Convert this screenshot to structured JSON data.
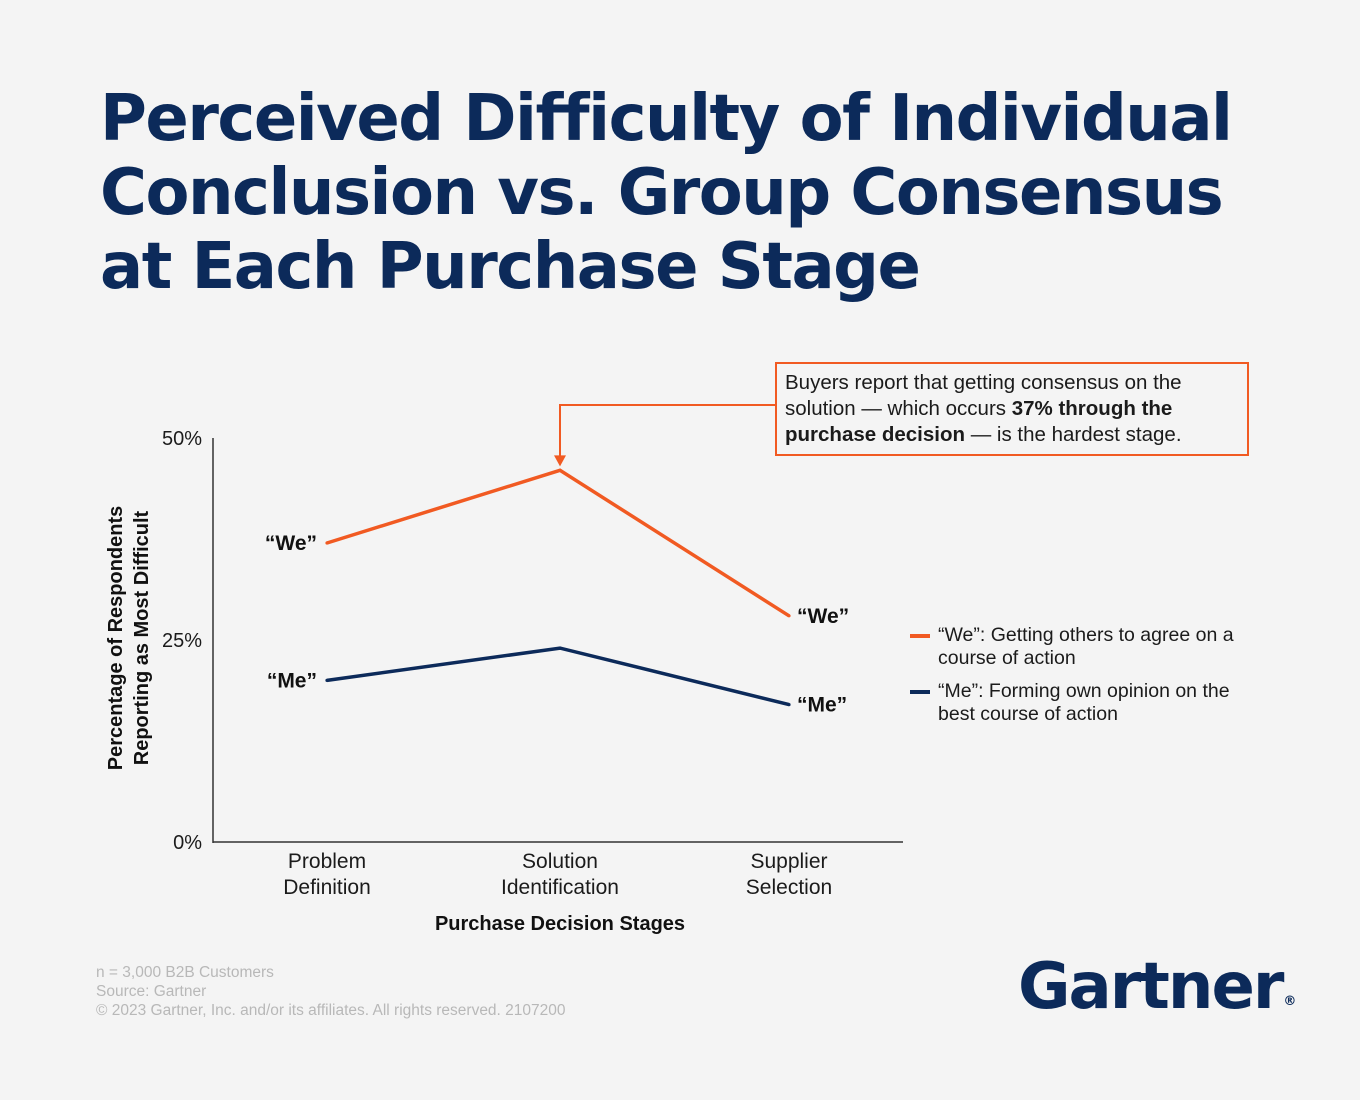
{
  "title_lines": [
    "Perceived Difficulty of Individual",
    "Conclusion vs. Group Consensus",
    "at Each Purchase Stage"
  ],
  "callout": {
    "text_before": "Buyers report that getting consensus on the solution — which occurs ",
    "text_bold": "37% through the purchase decision",
    "text_after": " — is the hardest stage."
  },
  "legend": [
    {
      "label": "“We”: Getting others to agree on a course of action",
      "color": "#f15a22"
    },
    {
      "label": "“Me”: Forming own opinion on the best course of action",
      "color": "#0c2a5a"
    }
  ],
  "footer": {
    "sample": "n = 3,000 B2B Customers",
    "source": "Source: Gartner",
    "copyright": "© 2023 Gartner, Inc. and/or its affiliates. All rights reserved. 2107200"
  },
  "logo": {
    "text": "Gartner",
    "mark": "®"
  },
  "chart_data": {
    "type": "line",
    "categories": [
      [
        "Problem",
        "Definition"
      ],
      [
        "Solution",
        "Identification"
      ],
      [
        "Supplier",
        "Selection"
      ]
    ],
    "series": [
      {
        "name": "“We”",
        "color": "#f15a22",
        "values": [
          37,
          46,
          28
        ]
      },
      {
        "name": "“Me”",
        "color": "#0c2a5a",
        "values": [
          20,
          24,
          17
        ]
      }
    ],
    "yticks": [
      "0%",
      "25%",
      "50%"
    ],
    "ytick_values": [
      0,
      25,
      50
    ],
    "ylim": [
      0,
      50
    ],
    "xlabel": "Purchase Decision Stages",
    "ylabel_lines": [
      "Percentage of Respondents",
      "Reporting as Most Difficult"
    ],
    "grid": false,
    "annotation_target": {
      "series": 0,
      "category": 1
    }
  }
}
